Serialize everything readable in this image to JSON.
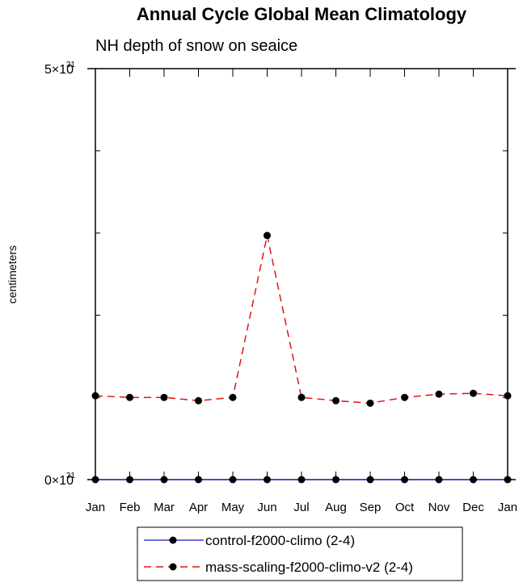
{
  "chart_data": {
    "type": "line",
    "title": "Annual Cycle Global Mean Climatology",
    "subtitle": "NH depth of snow on seaice",
    "ylabel": "centimeters",
    "xlabel": "",
    "categories": [
      "Jan",
      "Feb",
      "Mar",
      "Apr",
      "May",
      "Jun",
      "Jul",
      "Aug",
      "Sep",
      "Oct",
      "Nov",
      "Dec",
      "Jan"
    ],
    "ylim": [
      0,
      5e+31
    ],
    "y_tick_labels": [
      {
        "value": 0,
        "mantissa": "0",
        "exp": "31"
      },
      {
        "value": 5e+31,
        "mantissa": "5",
        "exp": "31"
      }
    ],
    "y_minor_ticks": [
      1e+31,
      2e+31,
      3e+31,
      4e+31
    ],
    "series": [
      {
        "name": "control-f2000-climo (2-4)",
        "color": "#3b3bd6",
        "dash": "solid",
        "values": [
          0,
          0,
          0,
          0,
          0,
          0,
          0,
          0,
          0,
          0,
          0,
          0,
          0
        ]
      },
      {
        "name": "mass-scaling-f2000-climo-v2 (2-4)",
        "color": "#e01414",
        "dash": "dashed",
        "values": [
          1.02e+31,
          1e+31,
          1e+31,
          9.6e+30,
          1e+31,
          2.97e+31,
          1e+31,
          9.6e+30,
          9.3e+30,
          1e+31,
          1.04e+31,
          1.05e+31,
          1.02e+31
        ]
      }
    ],
    "legend_position": "bottom-center",
    "grid": false
  }
}
